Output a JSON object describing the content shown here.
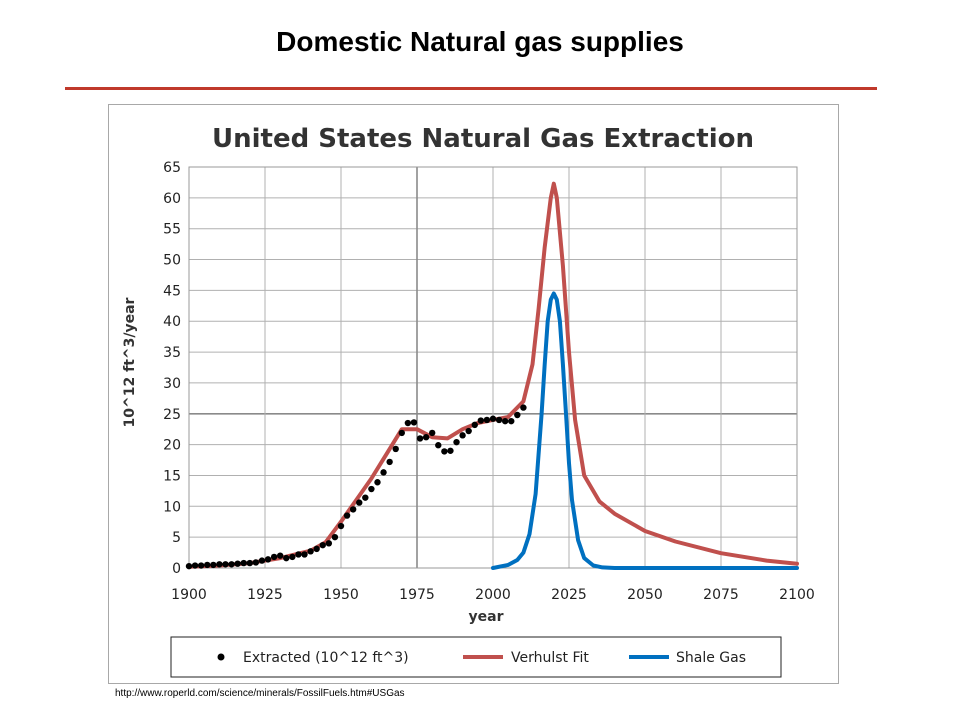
{
  "slide": {
    "title": "Domestic Natural gas supplies",
    "source": "http://www.roperld.com/science/minerals/FossilFuels.htm#USGas"
  },
  "colors": {
    "rule": "#c0392b",
    "extracted": "#000000",
    "verhulst": "#c0504d",
    "shale": "#0070c0",
    "grid": "#b0b0b0"
  },
  "chart_data": {
    "type": "line",
    "title": "United States Natural Gas Extraction",
    "xlabel": "year",
    "ylabel": "10^12 ft^3/year",
    "xlim": [
      1900,
      2100
    ],
    "ylim": [
      0,
      65
    ],
    "x_ticks": [
      "1900",
      "1925",
      "1950",
      "1975",
      "2000",
      "2025",
      "2050",
      "2075",
      "2100"
    ],
    "y_ticks": [
      "0",
      "5",
      "10",
      "15",
      "20",
      "25",
      "30",
      "35",
      "40",
      "45",
      "50",
      "55",
      "60",
      "65"
    ],
    "grid": true,
    "legend_position": "bottom",
    "series": [
      {
        "name": "Extracted (10^12 ft^3)",
        "style": "markers",
        "x": [
          1900,
          1902,
          1904,
          1906,
          1908,
          1910,
          1912,
          1914,
          1916,
          1918,
          1920,
          1922,
          1924,
          1926,
          1928,
          1930,
          1932,
          1934,
          1936,
          1938,
          1940,
          1942,
          1944,
          1946,
          1948,
          1950,
          1952,
          1954,
          1956,
          1958,
          1960,
          1962,
          1964,
          1966,
          1968,
          1970,
          1972,
          1974,
          1976,
          1978,
          1980,
          1982,
          1984,
          1986,
          1988,
          1990,
          1992,
          1994,
          1996,
          1998,
          2000,
          2002,
          2004,
          2006,
          2008,
          2010
        ],
        "y": [
          0.3,
          0.4,
          0.4,
          0.5,
          0.5,
          0.6,
          0.6,
          0.6,
          0.7,
          0.8,
          0.8,
          0.9,
          1.2,
          1.4,
          1.8,
          2.0,
          1.6,
          1.8,
          2.2,
          2.2,
          2.7,
          3.1,
          3.7,
          4.0,
          5.0,
          6.8,
          8.5,
          9.5,
          10.6,
          11.4,
          12.8,
          13.9,
          15.5,
          17.2,
          19.3,
          21.9,
          23.5,
          23.6,
          21.0,
          21.2,
          21.9,
          19.9,
          18.9,
          19.0,
          20.4,
          21.5,
          22.2,
          23.2,
          23.9,
          24.0,
          24.2,
          24.0,
          23.8,
          23.8,
          24.8,
          26.0
        ]
      },
      {
        "name": "Verhulst Fit",
        "style": "line",
        "x": [
          1900,
          1910,
          1920,
          1930,
          1940,
          1945,
          1950,
          1955,
          1960,
          1965,
          1970,
          1975,
          1980,
          1985,
          1990,
          1995,
          2000,
          2005,
          2010,
          2013,
          2015,
          2017,
          2019,
          2020,
          2021,
          2023,
          2025,
          2027,
          2030,
          2035,
          2040,
          2050,
          2060,
          2075,
          2090,
          2100
        ],
        "y": [
          0.2,
          0.4,
          0.8,
          1.6,
          2.8,
          4.2,
          7.5,
          11.0,
          14.5,
          18.5,
          22.5,
          22.5,
          21.2,
          21.0,
          22.5,
          23.5,
          24.0,
          24.5,
          27.0,
          33.0,
          42.0,
          52.0,
          60.0,
          62.3,
          60.0,
          49.0,
          35.0,
          24.0,
          15.0,
          10.8,
          8.8,
          6.0,
          4.3,
          2.4,
          1.2,
          0.7
        ]
      },
      {
        "name": "Shale Gas",
        "style": "line",
        "x": [
          2000,
          2005,
          2008,
          2010,
          2012,
          2014,
          2016,
          2017,
          2018,
          2019,
          2020,
          2021,
          2022,
          2023,
          2024,
          2025,
          2026,
          2028,
          2030,
          2033,
          2036,
          2040,
          2050,
          2075,
          2100
        ],
        "y": [
          0.0,
          0.5,
          1.3,
          2.5,
          5.5,
          12.0,
          25.0,
          33.0,
          40.0,
          43.5,
          44.5,
          43.5,
          40.0,
          33.0,
          25.0,
          17.0,
          11.0,
          4.5,
          1.6,
          0.4,
          0.1,
          0.0,
          0.0,
          0.0,
          0.0
        ]
      }
    ]
  }
}
